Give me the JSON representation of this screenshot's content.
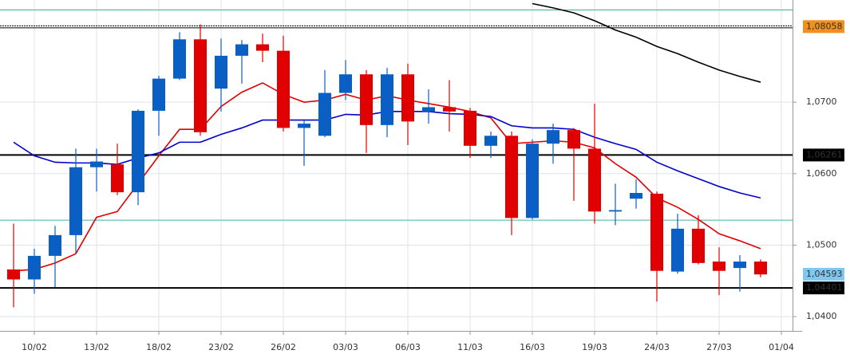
{
  "chart_data": {
    "type": "candlestick",
    "categories": [
      null,
      "10/02",
      null,
      null,
      "13/02",
      null,
      null,
      "18/02",
      null,
      null,
      "23/02",
      null,
      null,
      "26/02",
      null,
      null,
      "03/03",
      null,
      null,
      "06/03",
      null,
      null,
      "11/03",
      null,
      null,
      "16/03",
      null,
      null,
      "19/03",
      null,
      null,
      "24/03",
      null,
      null,
      "27/03",
      null,
      null,
      "01/04"
    ],
    "open": [
      1.0466,
      1.0452,
      1.0485,
      1.0514,
      1.0609,
      1.0613,
      1.0574,
      1.0688,
      1.0733,
      1.0788,
      1.0719,
      1.0765,
      1.0781,
      1.0772,
      1.0664,
      1.0653,
      1.0713,
      1.0739,
      1.0668,
      1.0739,
      1.0687,
      1.0693,
      1.0688,
      1.0639,
      1.0653,
      1.0538,
      1.0642,
      1.0661,
      1.0635,
      1.0547,
      1.0565,
      1.0572,
      1.0463,
      1.0523,
      1.0477,
      1.0468,
      1.0477,
      null
    ],
    "high": [
      1.053,
      1.0495,
      1.0527,
      1.0635,
      1.0635,
      1.0642,
      1.069,
      1.0737,
      1.0798,
      1.0809,
      1.0789,
      1.0787,
      1.0796,
      1.0793,
      1.0675,
      1.0745,
      1.0759,
      1.0745,
      1.0748,
      1.0754,
      1.0718,
      1.0731,
      1.0692,
      1.0659,
      1.0659,
      1.0648,
      1.067,
      1.0664,
      1.0698,
      1.0586,
      1.0592,
      1.0575,
      1.0544,
      1.0542,
      1.0497,
      1.0486,
      1.048,
      null
    ],
    "low": [
      1.0413,
      1.0432,
      1.0441,
      1.0488,
      1.0575,
      1.057,
      1.0556,
      1.0653,
      1.0731,
      1.0653,
      1.0687,
      1.0726,
      1.0756,
      1.0659,
      1.0611,
      1.0651,
      1.0703,
      1.0629,
      1.0651,
      1.064,
      1.067,
      1.0659,
      1.0622,
      1.0622,
      1.0514,
      1.0536,
      1.0614,
      1.0562,
      1.053,
      1.0528,
      1.0551,
      1.0421,
      1.046,
      1.0473,
      1.043,
      1.0435,
      1.0455,
      null
    ],
    "close": [
      1.0452,
      1.0485,
      1.0514,
      1.0609,
      1.0617,
      1.0574,
      1.0688,
      1.0733,
      1.0788,
      1.0658,
      1.0765,
      1.0781,
      1.0772,
      1.0664,
      1.067,
      1.0713,
      1.0739,
      1.0668,
      1.0739,
      1.0673,
      1.0693,
      1.0687,
      1.0639,
      1.0653,
      1.0538,
      1.0642,
      1.0661,
      1.0635,
      1.0547,
      1.0549,
      1.0573,
      1.0464,
      1.0523,
      1.0475,
      1.0464,
      1.0477,
      1.0459,
      null
    ],
    "up_color": "#0a5fc4",
    "down_color": "#e00000",
    "lines": [
      {
        "color": "#e00000",
        "values": [
          1.0464,
          1.0466,
          1.0475,
          1.0488,
          1.0539,
          1.0547,
          1.0586,
          1.0625,
          1.0662,
          1.0662,
          1.0694,
          1.0714,
          1.0727,
          1.0711,
          1.07,
          1.0703,
          1.0711,
          1.0703,
          1.0709,
          1.0703,
          1.0698,
          1.0693,
          1.0687,
          1.0678,
          1.0642,
          1.0644,
          1.0646,
          1.0644,
          1.0636,
          1.0614,
          1.0595,
          1.0566,
          1.0553,
          1.0536,
          1.0516,
          1.0506,
          1.0495,
          null
        ]
      },
      {
        "color": "#0000cc",
        "values": [
          1.0644,
          1.0625,
          1.0616,
          1.0615,
          1.0615,
          1.0613,
          1.0622,
          1.0629,
          1.0644,
          1.0644,
          1.0655,
          1.0664,
          1.0675,
          1.0675,
          1.0675,
          1.0675,
          1.0683,
          1.0682,
          1.0687,
          1.0687,
          1.0687,
          1.0684,
          1.0683,
          1.068,
          1.0667,
          1.0664,
          1.0664,
          1.0662,
          1.0651,
          1.0642,
          1.0634,
          1.0616,
          1.0604,
          1.0593,
          1.0582,
          1.0573,
          1.0566,
          null
        ]
      },
      {
        "color": "#000000",
        "values": [
          null,
          null,
          null,
          null,
          null,
          null,
          null,
          null,
          null,
          null,
          null,
          null,
          null,
          null,
          null,
          null,
          null,
          null,
          null,
          null,
          null,
          null,
          null,
          null,
          null,
          1.0838,
          1.0832,
          1.0825,
          1.0814,
          1.0801,
          1.0791,
          1.0778,
          1.0768,
          1.0756,
          1.0745,
          1.0736,
          1.0728,
          null
        ]
      }
    ],
    "guides": [
      1.0829,
      1.0535
    ],
    "levels": [
      {
        "value": 1.08058,
        "label": "1,08058",
        "color": "#f0901e"
      },
      {
        "value": 1.06261,
        "label": "1,06261",
        "color": "#000000"
      },
      {
        "value": 1.04593,
        "label": "1,04593",
        "color": "#7fc8f0"
      },
      {
        "value": 1.04401,
        "label": "1,04401",
        "color": "#000000"
      }
    ],
    "ylim": [
      1.038,
      1.0843
    ],
    "yticks": [
      {
        "value": 1.07,
        "label": "1,0700"
      },
      {
        "value": 1.06,
        "label": "1,0600"
      },
      {
        "value": 1.05,
        "label": "1,0500"
      },
      {
        "value": 1.04,
        "label": "1,0400"
      }
    ],
    "grid": true
  }
}
